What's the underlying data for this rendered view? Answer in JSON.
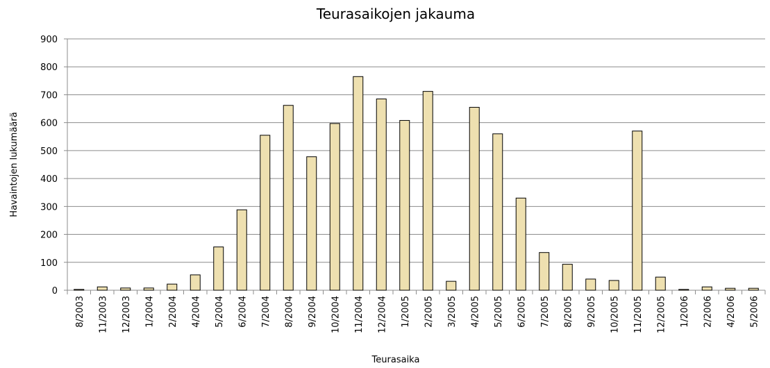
{
  "chart_data": {
    "type": "bar",
    "title": "Teurasaikojen jakauma",
    "x_label": "Teurasaika",
    "y_label": "Havaintojen lukumäärä",
    "categories": [
      "8/2003",
      "11/2003",
      "12/2003",
      "1/2004",
      "2/2004",
      "4/2004",
      "5/2004",
      "6/2004",
      "7/2004",
      "8/2004",
      "9/2004",
      "10/2004",
      "11/2004",
      "12/2004",
      "1/2005",
      "2/2005",
      "3/2005",
      "4/2005",
      "5/2005",
      "6/2005",
      "7/2005",
      "8/2005",
      "9/2005",
      "10/2005",
      "11/2005",
      "12/2005",
      "1/2006",
      "2/2006",
      "4/2006",
      "5/2006"
    ],
    "values": [
      3,
      12,
      8,
      8,
      22,
      55,
      155,
      288,
      555,
      662,
      478,
      597,
      765,
      685,
      608,
      712,
      32,
      655,
      560,
      330,
      135,
      93,
      40,
      35,
      570,
      47,
      3,
      12,
      7,
      7
    ],
    "color": "#eee0b0",
    "ylim": [
      0,
      900
    ],
    "yticks": [
      0,
      100,
      200,
      300,
      400,
      500,
      600,
      700,
      800,
      900
    ],
    "grid": true
  }
}
